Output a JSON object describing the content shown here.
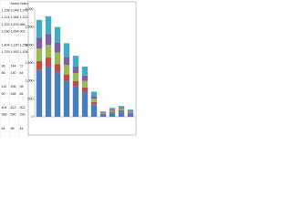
{
  "sheet": {
    "header": [
      "",
      "Audio",
      "Video"
    ],
    "rows": [
      [
        "1,158",
        "2,048",
        "1,376"
      ],
      [
        "1,224",
        "1,984",
        "1,122"
      ],
      [
        "1,302",
        "1,876",
        "986"
      ],
      [
        "1,090",
        "1,654",
        "902"
      ],
      [
        "",
        "",
        ""
      ],
      [
        "1,404",
        "2,120",
        "1,254"
      ],
      [
        "1,376",
        "1,902",
        "1,106"
      ],
      [
        "",
        "",
        ""
      ],
      [
        "96",
        "144",
        "72"
      ],
      [
        "86",
        "130",
        "64"
      ],
      [
        "",
        "",
        ""
      ],
      [
        "110",
        "206",
        "98"
      ],
      [
        "90",
        "168",
        "84"
      ],
      [
        "",
        "",
        ""
      ],
      [
        "404",
        "612",
        "302"
      ],
      [
        "388",
        "590",
        "290"
      ],
      [
        "",
        "",
        ""
      ],
      [
        "64",
        "98",
        "44"
      ]
    ]
  },
  "chart_data": {
    "type": "bar",
    "stacked": true,
    "categories": [
      null,
      null,
      null,
      null,
      null,
      null,
      null,
      null,
      null,
      null,
      null
    ],
    "series": [
      {
        "color": "#4a7ebb",
        "values": [
          1300,
          1400,
          1250,
          1000,
          850,
          700,
          350,
          80,
          120,
          150,
          100
        ]
      },
      {
        "color": "#be4b48",
        "values": [
          250,
          250,
          220,
          180,
          150,
          120,
          60,
          15,
          25,
          30,
          20
        ]
      },
      {
        "color": "#98b954",
        "values": [
          350,
          350,
          320,
          270,
          220,
          180,
          90,
          20,
          35,
          40,
          25
        ]
      },
      {
        "color": "#7d60a0",
        "values": [
          300,
          300,
          280,
          220,
          180,
          150,
          80,
          15,
          30,
          30,
          20
        ]
      },
      {
        "color": "#46aac5",
        "values": [
          500,
          500,
          430,
          380,
          300,
          250,
          120,
          20,
          40,
          50,
          35
        ]
      }
    ],
    "ylim": [
      0,
      3000
    ],
    "yticks": [
      0,
      500,
      {
        "value": 1000,
        "label": "1,000"
      },
      {
        "value": 1500,
        "label": "1,500"
      },
      {
        "value": 2000,
        "label": "2,000"
      },
      {
        "value": 2500,
        "label": "2,500"
      },
      {
        "value": 3000,
        "label": "3,000"
      }
    ],
    "grid": false
  }
}
